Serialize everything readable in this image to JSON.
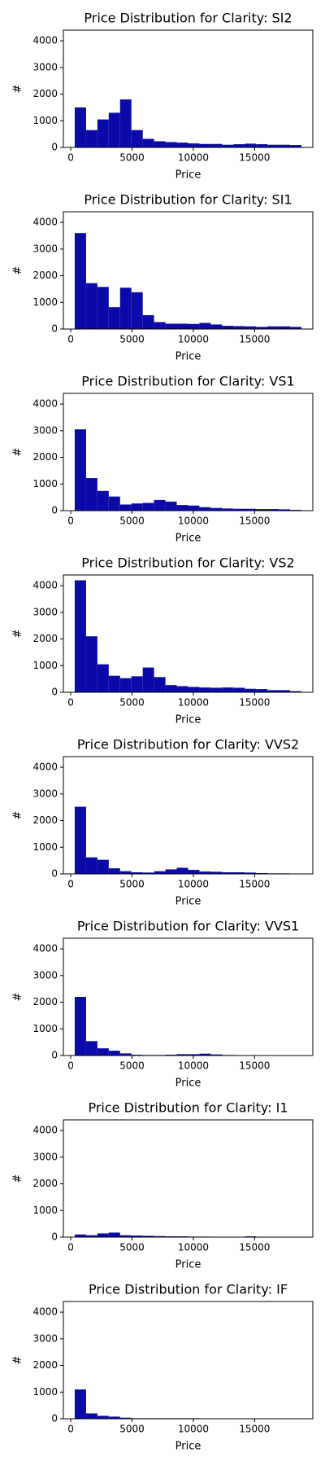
{
  "chart_data": [
    {
      "type": "histogram",
      "title": "Price Distribution for Clarity: SI2",
      "x_label": "Price",
      "y_label": "#",
      "color": "#0a0aa8",
      "bins": [
        326,
        1250.85,
        2175.7,
        3100.55,
        4025.4,
        4950.25,
        5875.1,
        6799.95,
        7724.8,
        8649.65,
        9574.5,
        10499.35,
        11424.2,
        12349.05,
        13273.9,
        14198.75,
        15123.6,
        16048.45,
        16973.3,
        17898.15,
        18823
      ],
      "values": [
        1500,
        650,
        1050,
        1300,
        1800,
        650,
        320,
        230,
        200,
        180,
        150,
        130,
        130,
        100,
        120,
        140,
        120,
        100,
        100,
        90
      ],
      "xlim": [
        -600,
        19750
      ],
      "ylim": [
        0,
        4400
      ],
      "xticks": [
        0,
        5000,
        10000,
        15000
      ],
      "yticks": [
        0,
        1000,
        2000,
        3000,
        4000
      ]
    },
    {
      "type": "histogram",
      "title": "Price Distribution for Clarity: SI1",
      "x_label": "Price",
      "y_label": "#",
      "color": "#0a0aa8",
      "bins": [
        326,
        1250.85,
        2175.7,
        3100.55,
        4025.4,
        4950.25,
        5875.1,
        6799.95,
        7724.8,
        8649.65,
        9574.5,
        10499.35,
        11424.2,
        12349.05,
        13273.9,
        14198.75,
        15123.6,
        16048.45,
        16973.3,
        17898.15,
        18823
      ],
      "values": [
        3600,
        1720,
        1580,
        820,
        1550,
        1380,
        520,
        260,
        200,
        200,
        190,
        230,
        170,
        120,
        110,
        100,
        80,
        100,
        100,
        80
      ],
      "xlim": [
        -600,
        19750
      ],
      "ylim": [
        0,
        4400
      ],
      "xticks": [
        0,
        5000,
        10000,
        15000
      ],
      "yticks": [
        0,
        1000,
        2000,
        3000,
        4000
      ]
    },
    {
      "type": "histogram",
      "title": "Price Distribution for Clarity: VS1",
      "x_label": "Price",
      "y_label": "#",
      "color": "#0a0aa8",
      "bins": [
        326,
        1250.85,
        2175.7,
        3100.55,
        4025.4,
        4950.25,
        5875.1,
        6799.95,
        7724.8,
        8649.65,
        9574.5,
        10499.35,
        11424.2,
        12349.05,
        13273.9,
        14198.75,
        15123.6,
        16048.45,
        16973.3,
        17898.15,
        18823
      ],
      "values": [
        3050,
        1220,
        740,
        530,
        230,
        270,
        290,
        400,
        340,
        210,
        190,
        130,
        100,
        80,
        70,
        70,
        60,
        60,
        50,
        30
      ],
      "xlim": [
        -600,
        19750
      ],
      "ylim": [
        0,
        4400
      ],
      "xticks": [
        0,
        5000,
        10000,
        15000
      ],
      "yticks": [
        0,
        1000,
        2000,
        3000,
        4000
      ]
    },
    {
      "type": "histogram",
      "title": "Price Distribution for Clarity: VS2",
      "x_label": "Price",
      "y_label": "#",
      "color": "#0a0aa8",
      "bins": [
        326,
        1250.85,
        2175.7,
        3100.55,
        4025.4,
        4950.25,
        5875.1,
        6799.95,
        7724.8,
        8649.65,
        9574.5,
        10499.35,
        11424.2,
        12349.05,
        13273.9,
        14198.75,
        15123.6,
        16048.45,
        16973.3,
        17898.15,
        18823
      ],
      "values": [
        4200,
        2100,
        1050,
        620,
        530,
        600,
        930,
        570,
        270,
        230,
        200,
        180,
        170,
        180,
        170,
        130,
        120,
        80,
        80,
        40
      ],
      "xlim": [
        -600,
        19750
      ],
      "ylim": [
        0,
        4400
      ],
      "xticks": [
        0,
        5000,
        10000,
        15000
      ],
      "yticks": [
        0,
        1000,
        2000,
        3000,
        4000
      ]
    },
    {
      "type": "histogram",
      "title": "Price Distribution for Clarity: VVS2",
      "x_label": "Price",
      "y_label": "#",
      "color": "#0a0aa8",
      "bins": [
        326,
        1250.85,
        2175.7,
        3100.55,
        4025.4,
        4950.25,
        5875.1,
        6799.95,
        7724.8,
        8649.65,
        9574.5,
        10499.35,
        11424.2,
        12349.05,
        13273.9,
        14198.75,
        15123.6,
        16048.45,
        16973.3,
        17898.15,
        18823
      ],
      "values": [
        2520,
        620,
        530,
        210,
        100,
        60,
        50,
        100,
        170,
        230,
        150,
        90,
        80,
        60,
        60,
        50,
        30,
        20,
        20,
        10
      ],
      "xlim": [
        -600,
        19750
      ],
      "ylim": [
        0,
        4400
      ],
      "xticks": [
        0,
        5000,
        10000,
        15000
      ],
      "yticks": [
        0,
        1000,
        2000,
        3000,
        4000
      ]
    },
    {
      "type": "histogram",
      "title": "Price Distribution for Clarity: VVS1",
      "x_label": "Price",
      "y_label": "#",
      "color": "#0a0aa8",
      "bins": [
        326,
        1250.85,
        2175.7,
        3100.55,
        4025.4,
        4950.25,
        5875.1,
        6799.95,
        7724.8,
        8649.65,
        9574.5,
        10499.35,
        11424.2,
        12349.05,
        13273.9,
        14198.75,
        15123.6,
        16048.45,
        16973.3,
        17898.15,
        18823
      ],
      "values": [
        2200,
        540,
        270,
        180,
        80,
        30,
        20,
        20,
        30,
        50,
        50,
        70,
        40,
        20,
        10,
        10,
        10,
        10,
        10,
        5
      ],
      "xlim": [
        -600,
        19750
      ],
      "ylim": [
        0,
        4400
      ],
      "xticks": [
        0,
        5000,
        10000,
        15000
      ],
      "yticks": [
        0,
        1000,
        2000,
        3000,
        4000
      ]
    },
    {
      "type": "histogram",
      "title": "Price Distribution for Clarity: I1",
      "x_label": "Price",
      "y_label": "#",
      "color": "#0a0aa8",
      "bins": [
        326,
        1250.85,
        2175.7,
        3100.55,
        4025.4,
        4950.25,
        5875.1,
        6799.95,
        7724.8,
        8649.65,
        9574.5,
        10499.35,
        11424.2,
        12349.05,
        13273.9,
        14198.75,
        15123.6,
        16048.45,
        16973.3,
        17898.15,
        18823
      ],
      "values": [
        100,
        70,
        140,
        170,
        70,
        60,
        50,
        40,
        30,
        30,
        20,
        20,
        10,
        10,
        10,
        30,
        5,
        5,
        5,
        5
      ],
      "xlim": [
        -600,
        19750
      ],
      "ylim": [
        0,
        4400
      ],
      "xticks": [
        0,
        5000,
        10000,
        15000
      ],
      "yticks": [
        0,
        1000,
        2000,
        3000,
        4000
      ]
    },
    {
      "type": "histogram",
      "title": "Price Distribution for Clarity: IF",
      "x_label": "Price",
      "y_label": "#",
      "color": "#0a0aa8",
      "bins": [
        326,
        1250.85,
        2175.7,
        3100.55,
        4025.4,
        4950.25,
        5875.1,
        6799.95,
        7724.8,
        8649.65,
        9574.5,
        10499.35,
        11424.2,
        12349.05,
        13273.9,
        14198.75,
        15123.6,
        16048.45,
        16973.3,
        17898.15,
        18823
      ],
      "values": [
        1100,
        200,
        110,
        80,
        40,
        20,
        20,
        20,
        20,
        20,
        20,
        10,
        10,
        10,
        10,
        10,
        10,
        10,
        10,
        5
      ],
      "xlim": [
        -600,
        19750
      ],
      "ylim": [
        0,
        4400
      ],
      "xticks": [
        0,
        5000,
        10000,
        15000
      ],
      "yticks": [
        0,
        1000,
        2000,
        3000,
        4000
      ]
    }
  ]
}
